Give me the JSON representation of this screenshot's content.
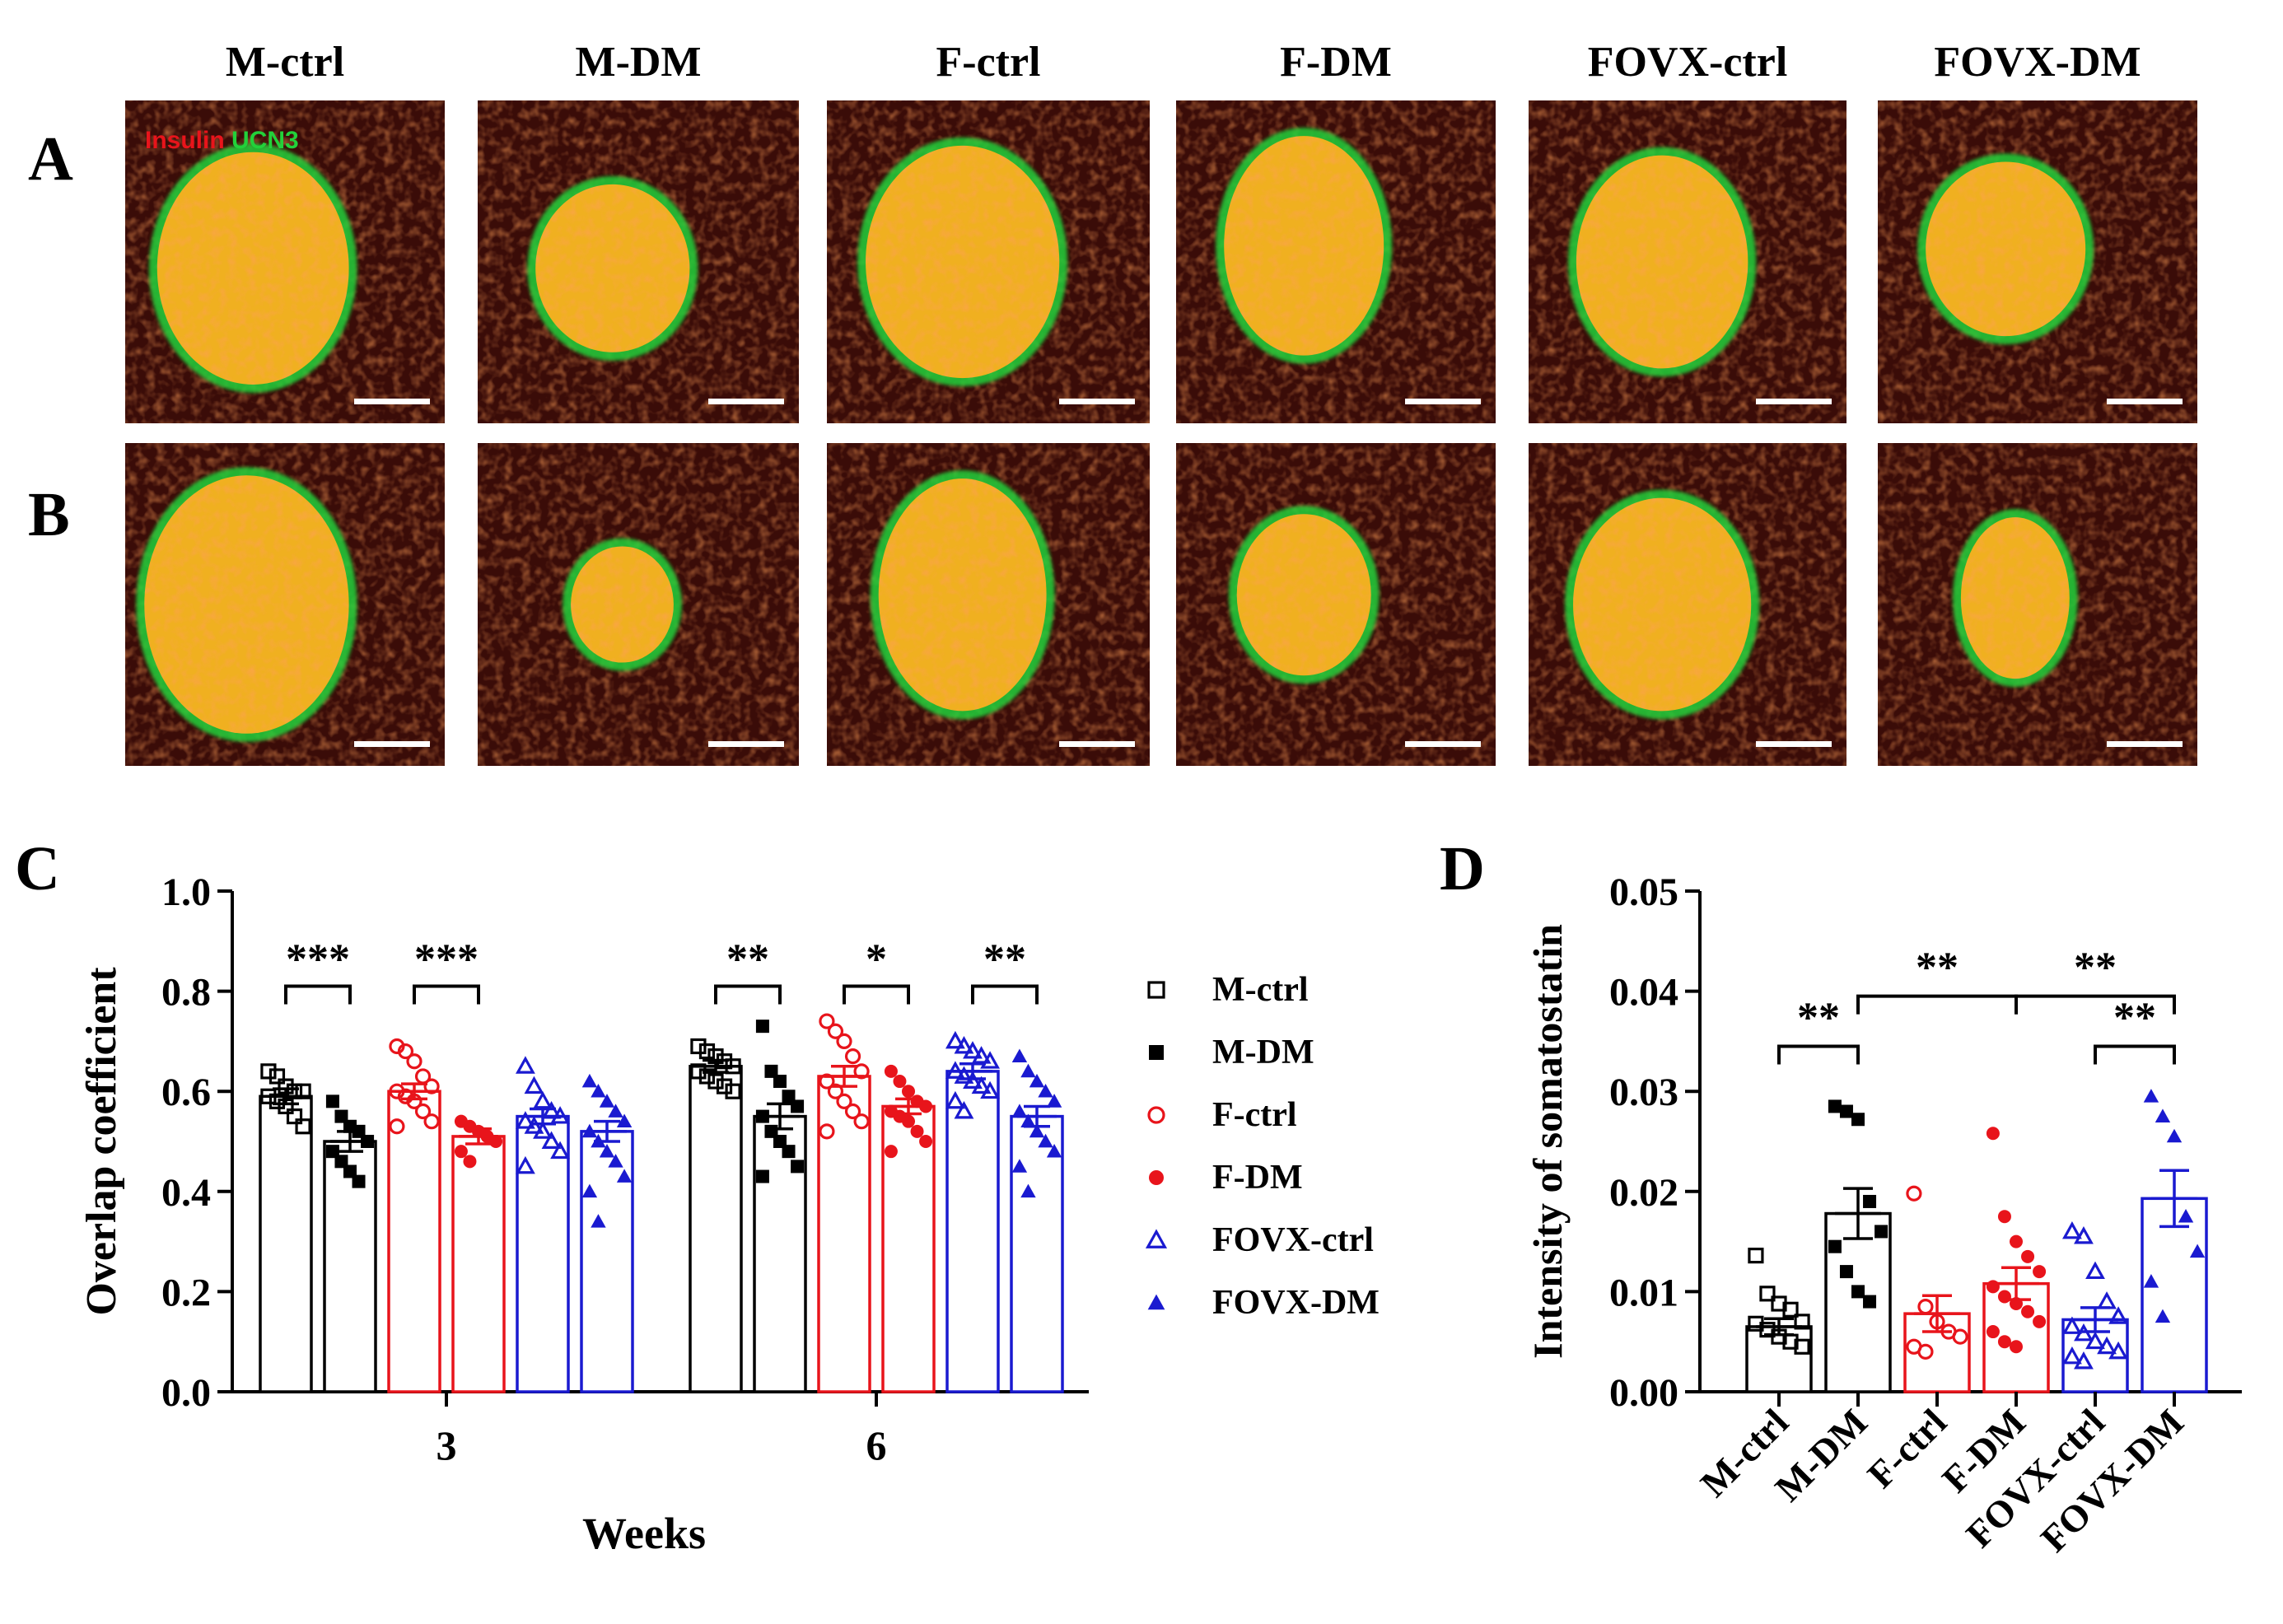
{
  "panels": {
    "A": "A",
    "B": "B",
    "C": "C",
    "D": "D"
  },
  "micrograph": {
    "columns": [
      "M-ctrl",
      "M-DM",
      "F-ctrl",
      "F-DM",
      "FOVX-ctrl",
      "FOVX-DM"
    ],
    "stain_insulin": "Insulin",
    "stain_ucn3": "UCN3",
    "colors": {
      "insulin": "#e8141b",
      "ucn3": "#22d13a",
      "overlap": "#f0b020",
      "background": "#3a0c08"
    },
    "rowA_islet_rel": [
      [
        0.4,
        0.52,
        0.3,
        0.36
      ],
      [
        0.42,
        0.52,
        0.24,
        0.26
      ],
      [
        0.42,
        0.5,
        0.3,
        0.36
      ],
      [
        0.4,
        0.45,
        0.25,
        0.34
      ],
      [
        0.42,
        0.5,
        0.27,
        0.33
      ],
      [
        0.4,
        0.46,
        0.25,
        0.27
      ]
    ],
    "rowB_islet_rel": [
      [
        0.38,
        0.5,
        0.32,
        0.4
      ],
      [
        0.45,
        0.5,
        0.16,
        0.18
      ],
      [
        0.42,
        0.47,
        0.26,
        0.36
      ],
      [
        0.4,
        0.47,
        0.21,
        0.25
      ],
      [
        0.42,
        0.5,
        0.28,
        0.33
      ],
      [
        0.43,
        0.48,
        0.17,
        0.25
      ]
    ]
  },
  "chart_data": [
    {
      "id": "C",
      "type": "bar",
      "ylabel": "Overlap coefficient",
      "xlabel": "Weeks",
      "ylim": [
        0,
        1.0
      ],
      "yticks": [
        "0.0",
        "0.2",
        "0.4",
        "0.6",
        "0.8",
        "1.0"
      ],
      "categories": [
        "3",
        "6"
      ],
      "series": [
        {
          "name": "M-ctrl",
          "color": "#000000",
          "marker": "open-square",
          "values": [
            0.59,
            0.65
          ],
          "sem": [
            0.015,
            0.012
          ],
          "points": [
            [
              0.64,
              0.63,
              0.61,
              0.6,
              0.6,
              0.59,
              0.58,
              0.57,
              0.55,
              0.53
            ],
            [
              0.69,
              0.68,
              0.67,
              0.66,
              0.65,
              0.64,
              0.63,
              0.62,
              0.61,
              0.6
            ]
          ]
        },
        {
          "name": "M-DM",
          "color": "#000000",
          "marker": "filled-square",
          "values": [
            0.5,
            0.55
          ],
          "sem": [
            0.02,
            0.025
          ],
          "points": [
            [
              0.58,
              0.55,
              0.53,
              0.52,
              0.5,
              0.48,
              0.46,
              0.44,
              0.42
            ],
            [
              0.73,
              0.64,
              0.62,
              0.59,
              0.57,
              0.55,
              0.52,
              0.5,
              0.48,
              0.45,
              0.43
            ]
          ]
        },
        {
          "name": "F-ctrl",
          "color": "#e8141b",
          "marker": "open-circle",
          "values": [
            0.6,
            0.63
          ],
          "sem": [
            0.015,
            0.02
          ],
          "points": [
            [
              0.69,
              0.68,
              0.66,
              0.63,
              0.61,
              0.6,
              0.59,
              0.58,
              0.56,
              0.54,
              0.53
            ],
            [
              0.74,
              0.72,
              0.7,
              0.67,
              0.64,
              0.62,
              0.6,
              0.58,
              0.56,
              0.54,
              0.52
            ]
          ]
        },
        {
          "name": "F-DM",
          "color": "#e8141b",
          "marker": "filled-circle",
          "values": [
            0.51,
            0.57
          ],
          "sem": [
            0.015,
            0.015
          ],
          "points": [
            [
              0.54,
              0.53,
              0.52,
              0.51,
              0.5,
              0.48,
              0.46
            ],
            [
              0.64,
              0.62,
              0.6,
              0.58,
              0.57,
              0.56,
              0.55,
              0.54,
              0.52,
              0.5,
              0.48
            ]
          ]
        },
        {
          "name": "FOVX-ctrl",
          "color": "#1a1ad0",
          "marker": "open-triangle",
          "values": [
            0.55,
            0.64
          ],
          "sem": [
            0.015,
            0.015
          ],
          "points": [
            [
              0.65,
              0.61,
              0.58,
              0.56,
              0.55,
              0.54,
              0.53,
              0.52,
              0.5,
              0.48,
              0.45
            ],
            [
              0.7,
              0.69,
              0.68,
              0.67,
              0.66,
              0.64,
              0.63,
              0.62,
              0.61,
              0.6,
              0.58,
              0.56
            ]
          ]
        },
        {
          "name": "FOVX-DM",
          "color": "#1a1ad0",
          "marker": "filled-triangle",
          "values": [
            0.52,
            0.55
          ],
          "sem": [
            0.02,
            0.02
          ],
          "points": [
            [
              0.62,
              0.6,
              0.58,
              0.56,
              0.54,
              0.52,
              0.5,
              0.48,
              0.46,
              0.43,
              0.4,
              0.34
            ],
            [
              0.67,
              0.64,
              0.62,
              0.6,
              0.58,
              0.56,
              0.54,
              0.52,
              0.5,
              0.48,
              0.45,
              0.4
            ]
          ]
        }
      ],
      "significance": [
        {
          "week": "3",
          "pair": [
            "M-ctrl",
            "M-DM"
          ],
          "label": "***"
        },
        {
          "week": "3",
          "pair": [
            "F-ctrl",
            "F-DM"
          ],
          "label": "***"
        },
        {
          "week": "6",
          "pair": [
            "M-ctrl",
            "M-DM"
          ],
          "label": "**"
        },
        {
          "week": "6",
          "pair": [
            "F-ctrl",
            "F-DM"
          ],
          "label": "*"
        },
        {
          "week": "6",
          "pair": [
            "FOVX-ctrl",
            "FOVX-DM"
          ],
          "label": "**"
        }
      ]
    },
    {
      "id": "D",
      "type": "bar",
      "ylabel": "Intensity of somatostatin",
      "ylim": [
        0,
        0.05
      ],
      "yticks": [
        "0.00",
        "0.01",
        "0.02",
        "0.03",
        "0.04",
        "0.05"
      ],
      "categories": [
        "M-ctrl",
        "M-DM",
        "F-ctrl",
        "F-DM",
        "FOVX-ctrl",
        "FOVX-DM"
      ],
      "colors": [
        "#000000",
        "#000000",
        "#e8141b",
        "#e8141b",
        "#1a1ad0",
        "#1a1ad0"
      ],
      "markers": [
        "open-square",
        "filled-square",
        "open-circle",
        "filled-circle",
        "open-triangle",
        "filled-triangle"
      ],
      "values": [
        0.0065,
        0.0178,
        0.0078,
        0.0108,
        0.0072,
        0.0193
      ],
      "sem": [
        0.0008,
        0.0025,
        0.0018,
        0.0016,
        0.0012,
        0.0028
      ],
      "points": [
        [
          0.0136,
          0.0098,
          0.0088,
          0.0082,
          0.007,
          0.0068,
          0.0062,
          0.0055,
          0.005,
          0.0045
        ],
        [
          0.0285,
          0.028,
          0.0272,
          0.019,
          0.016,
          0.0145,
          0.012,
          0.01,
          0.009
        ],
        [
          0.0198,
          0.0085,
          0.007,
          0.006,
          0.0055,
          0.0045,
          0.004
        ],
        [
          0.0258,
          0.0175,
          0.015,
          0.0135,
          0.012,
          0.0105,
          0.0095,
          0.0088,
          0.008,
          0.007,
          0.006,
          0.005,
          0.0045
        ],
        [
          0.016,
          0.0155,
          0.012,
          0.009,
          0.0075,
          0.0065,
          0.0058,
          0.005,
          0.0045,
          0.004,
          0.0035,
          0.003
        ],
        [
          0.0295,
          0.0275,
          0.0255,
          0.0175,
          0.014,
          0.011,
          0.0075
        ]
      ],
      "significance": [
        {
          "pair": [
            "M-ctrl",
            "M-DM"
          ],
          "label": "**"
        },
        {
          "pair": [
            "M-DM",
            "F-DM"
          ],
          "label": "**"
        },
        {
          "pair": [
            "F-DM",
            "FOVX-DM"
          ],
          "label": "**"
        },
        {
          "pair": [
            "FOVX-ctrl",
            "FOVX-DM"
          ],
          "label": "**"
        }
      ]
    }
  ]
}
